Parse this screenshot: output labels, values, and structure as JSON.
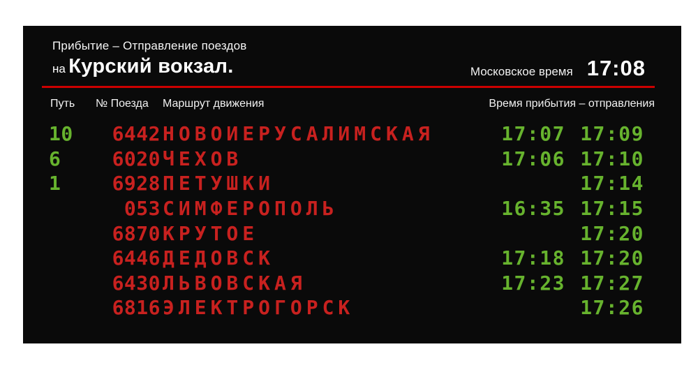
{
  "board": {
    "title_line1": "Прибытие – Отправление поездов",
    "title_prefix": "на",
    "title_station": "Курский вокзал.",
    "clock_label": "Московское время",
    "clock_time": "17:08",
    "columns": {
      "track": "Путь",
      "train": "№ Поезда",
      "route": "Маршрут движения",
      "times": "Время прибытия – отправления"
    },
    "colors": {
      "board_bg": "#0a0a0a",
      "page_bg": "#ffffff",
      "header_text": "#ffffff",
      "divider_red": "#cc0000",
      "data_red": "#c8211f",
      "data_green": "#67b32e"
    },
    "rows": [
      {
        "track": "10",
        "train": "6442",
        "route": "НОВОИЕРУСАЛИМСКАЯ",
        "arrival": "17:07",
        "departure": "17:09"
      },
      {
        "track": "6",
        "train": "6020",
        "route": "ЧЕХОВ",
        "arrival": "17:06",
        "departure": "17:10"
      },
      {
        "track": "1",
        "train": "6928",
        "route": "ПЕТУШКИ",
        "arrival": "",
        "departure": "17:14"
      },
      {
        "track": "",
        "train": "053",
        "route": "СИМФЕРОПОЛЬ",
        "arrival": "16:35",
        "departure": "17:15"
      },
      {
        "track": "",
        "train": "6870",
        "route": "КРУТОЕ",
        "arrival": "",
        "departure": "17:20"
      },
      {
        "track": "",
        "train": "6446",
        "route": "ДЕДОВСК",
        "arrival": "17:18",
        "departure": "17:20"
      },
      {
        "track": "",
        "train": "6430",
        "route": "ЛЬВОВСКАЯ",
        "arrival": "17:23",
        "departure": "17:27"
      },
      {
        "track": "",
        "train": "6816",
        "route": "ЭЛЕКТРОГОРСК",
        "arrival": "",
        "departure": "17:26"
      }
    ]
  }
}
